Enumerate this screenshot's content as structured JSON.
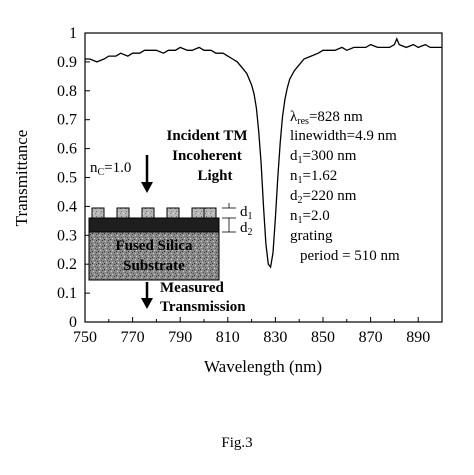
{
  "chart_data": {
    "type": "line",
    "xlabel": "Wavelength (nm)",
    "ylabel": "Transmittance",
    "xlim": [
      750,
      900
    ],
    "ylim": [
      0,
      1
    ],
    "xticks": [
      "750",
      "770",
      "790",
      "810",
      "830",
      "850",
      "870",
      "890"
    ],
    "yticks": [
      "0",
      "0.1",
      "0.2",
      "0.3",
      "0.4",
      "0.5",
      "0.6",
      "0.7",
      "0.8",
      "0.9",
      "1"
    ],
    "grid": false,
    "series": [
      {
        "x": [
          750,
          752,
          755,
          758,
          760,
          763,
          765,
          768,
          770,
          773,
          775,
          778,
          780,
          783,
          785,
          788,
          790,
          793,
          795,
          798,
          800,
          803,
          805,
          808,
          810,
          812,
          814,
          816,
          818,
          820,
          821,
          822,
          823,
          824,
          825,
          826,
          827,
          828,
          829,
          830,
          831,
          832,
          833,
          834,
          835,
          836,
          838,
          840,
          842,
          845,
          848,
          850,
          853,
          855,
          858,
          860,
          863,
          865,
          868,
          870,
          873,
          875,
          878,
          880,
          881,
          882,
          885,
          888,
          890,
          893,
          895,
          898,
          900
        ],
        "y": [
          0.91,
          0.91,
          0.9,
          0.91,
          0.92,
          0.92,
          0.93,
          0.92,
          0.93,
          0.93,
          0.94,
          0.94,
          0.94,
          0.93,
          0.94,
          0.94,
          0.95,
          0.94,
          0.94,
          0.95,
          0.94,
          0.94,
          0.93,
          0.93,
          0.92,
          0.91,
          0.9,
          0.88,
          0.86,
          0.82,
          0.79,
          0.74,
          0.66,
          0.55,
          0.4,
          0.27,
          0.2,
          0.19,
          0.24,
          0.36,
          0.5,
          0.62,
          0.71,
          0.77,
          0.81,
          0.84,
          0.87,
          0.89,
          0.91,
          0.92,
          0.93,
          0.94,
          0.94,
          0.94,
          0.95,
          0.94,
          0.95,
          0.95,
          0.95,
          0.96,
          0.95,
          0.95,
          0.95,
          0.96,
          0.98,
          0.96,
          0.95,
          0.96,
          0.95,
          0.96,
          0.95,
          0.95,
          0.95
        ]
      }
    ],
    "annotations": {
      "params": [
        "λres=828 nm",
        "linewidth=4.9 nm",
        "d1=300 nm",
        "n1=1.62",
        "d2=220 nm",
        "n1=2.0",
        "grating",
        "period = 510 nm"
      ],
      "incident": [
        "Incident TM",
        "Incoherent",
        "Light"
      ],
      "nc": "nC=1.0",
      "substrate": [
        "Fused Silica",
        "Substrate"
      ],
      "layers": [
        "d1",
        "d2"
      ],
      "measured": [
        "Measured",
        "Transmission"
      ]
    }
  },
  "caption": "Fig.3"
}
